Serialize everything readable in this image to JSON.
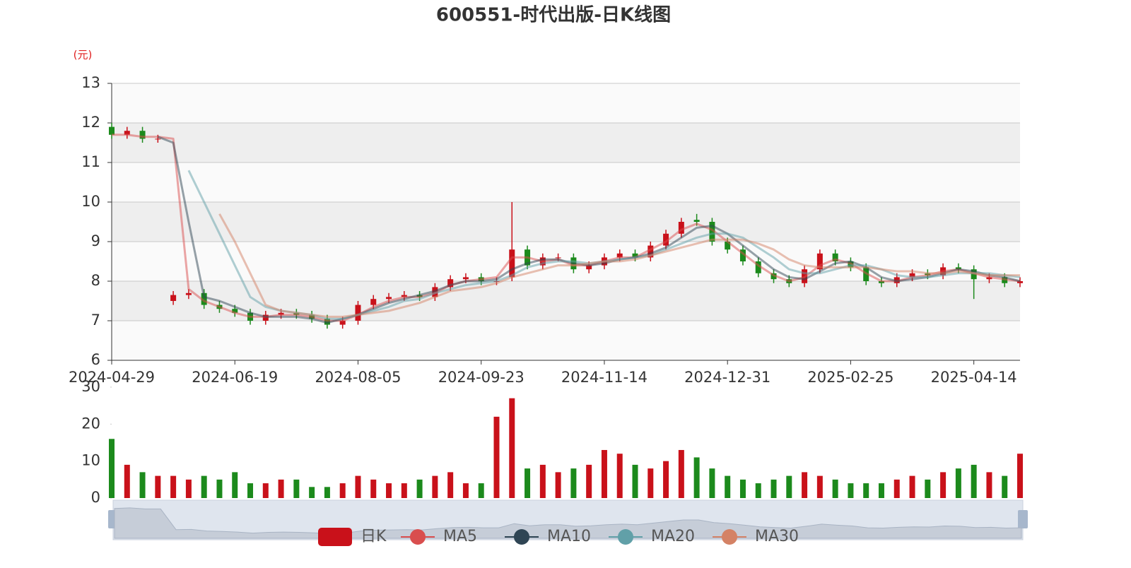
{
  "chart_data": {
    "type": "candlestick",
    "title": "600551-时代出版-日K线图",
    "y_unit": "(元)",
    "candle_name": "日K",
    "up_color": "#c9111a",
    "down_color": "#1c8a1c",
    "grid": true,
    "ylim": [
      6,
      13
    ],
    "yticks": [
      6,
      7,
      8,
      9,
      10,
      11,
      12,
      13
    ],
    "categories": [
      "2024-04-29",
      null,
      null,
      null,
      null,
      null,
      null,
      null,
      "2024-06-19",
      null,
      null,
      null,
      null,
      null,
      null,
      null,
      "2024-08-05",
      null,
      null,
      null,
      null,
      null,
      null,
      null,
      "2024-09-23",
      null,
      null,
      null,
      null,
      null,
      null,
      null,
      "2024-11-14",
      null,
      null,
      null,
      null,
      null,
      null,
      null,
      "2024-12-31",
      null,
      null,
      null,
      null,
      null,
      null,
      null,
      "2025-02-25",
      null,
      null,
      null,
      null,
      null,
      null,
      null,
      "2025-04-14",
      null,
      null,
      null
    ],
    "open": [
      11.9,
      11.7,
      11.8,
      11.6,
      7.5,
      7.65,
      7.7,
      7.4,
      7.3,
      7.2,
      7.0,
      7.15,
      7.2,
      7.15,
      7.05,
      6.9,
      7.0,
      7.4,
      7.55,
      7.6,
      7.65,
      7.6,
      7.85,
      8.05,
      8.1,
      8.0,
      8.1,
      8.8,
      8.4,
      8.6,
      8.6,
      8.3,
      8.4,
      8.6,
      8.7,
      8.6,
      8.9,
      9.2,
      9.55,
      9.5,
      9.0,
      8.8,
      8.5,
      8.2,
      8.05,
      7.95,
      8.3,
      8.7,
      8.5,
      8.35,
      8.0,
      7.95,
      8.1,
      8.2,
      8.15,
      8.35,
      8.3,
      8.05,
      8.1,
      7.95
    ],
    "close": [
      11.7,
      11.8,
      11.6,
      11.6,
      7.65,
      7.7,
      7.4,
      7.3,
      7.2,
      7.0,
      7.15,
      7.2,
      7.15,
      7.05,
      6.9,
      7.0,
      7.4,
      7.55,
      7.6,
      7.65,
      7.6,
      7.85,
      8.05,
      8.1,
      8.0,
      8.0,
      8.8,
      8.4,
      8.6,
      8.6,
      8.3,
      8.4,
      8.6,
      8.7,
      8.6,
      8.9,
      9.2,
      9.5,
      9.5,
      9.0,
      8.8,
      8.5,
      8.2,
      8.05,
      7.95,
      8.3,
      8.7,
      8.5,
      8.35,
      8.0,
      7.95,
      8.1,
      8.2,
      8.15,
      8.35,
      8.3,
      8.05,
      8.1,
      7.95,
      8.0
    ],
    "low": [
      11.6,
      11.6,
      11.5,
      11.5,
      7.4,
      7.55,
      7.3,
      7.2,
      7.1,
      6.9,
      6.9,
      7.05,
      7.05,
      6.95,
      6.8,
      6.8,
      6.9,
      7.3,
      7.45,
      7.5,
      7.5,
      7.5,
      7.75,
      7.95,
      7.9,
      7.9,
      8.0,
      8.3,
      8.3,
      8.5,
      8.2,
      8.2,
      8.3,
      8.5,
      8.5,
      8.5,
      8.8,
      9.1,
      9.4,
      8.9,
      8.7,
      8.4,
      8.1,
      7.95,
      7.85,
      7.85,
      8.2,
      8.4,
      8.25,
      7.9,
      7.85,
      7.85,
      8.0,
      8.05,
      8.05,
      8.2,
      7.55,
      7.95,
      7.85,
      7.85
    ],
    "high": [
      12.0,
      11.9,
      11.9,
      11.7,
      7.75,
      7.8,
      7.8,
      7.5,
      7.4,
      7.3,
      7.25,
      7.3,
      7.3,
      7.25,
      7.15,
      7.1,
      7.5,
      7.65,
      7.7,
      7.75,
      7.75,
      7.95,
      8.15,
      8.2,
      8.2,
      8.1,
      10.0,
      8.9,
      8.7,
      8.7,
      8.7,
      8.5,
      8.7,
      8.8,
      8.8,
      9.0,
      9.3,
      9.6,
      9.7,
      9.6,
      9.1,
      8.9,
      8.6,
      8.3,
      8.15,
      8.4,
      8.8,
      8.8,
      8.6,
      8.45,
      8.1,
      8.2,
      8.3,
      8.3,
      8.45,
      8.45,
      8.4,
      8.2,
      8.2,
      8.1
    ],
    "series": [
      {
        "name": "MA5",
        "color": "#d94e4e",
        "values": [
          11.7,
          11.7,
          11.65,
          11.65,
          11.6,
          7.8,
          7.5,
          7.35,
          7.2,
          7.1,
          7.1,
          7.15,
          7.15,
          7.1,
          7.0,
          7.0,
          7.15,
          7.35,
          7.5,
          7.6,
          7.6,
          7.7,
          7.9,
          8.0,
          8.05,
          8.1,
          8.6,
          8.6,
          8.5,
          8.55,
          8.4,
          8.4,
          8.5,
          8.6,
          8.6,
          8.8,
          9.0,
          9.3,
          9.45,
          9.3,
          9.0,
          8.7,
          8.4,
          8.15,
          8.0,
          8.1,
          8.4,
          8.55,
          8.45,
          8.2,
          8.0,
          8.0,
          8.1,
          8.15,
          8.25,
          8.3,
          8.2,
          8.1,
          8.05,
          8.0
        ]
      },
      {
        "name": "MA10",
        "color": "#2f4554",
        "values": [
          null,
          null,
          null,
          11.65,
          11.5,
          9.5,
          7.6,
          7.5,
          7.35,
          7.2,
          7.1,
          7.1,
          7.1,
          7.05,
          6.95,
          7.05,
          7.15,
          7.3,
          7.45,
          7.55,
          7.65,
          7.75,
          7.9,
          8.0,
          8.0,
          8.05,
          8.3,
          8.45,
          8.55,
          8.55,
          8.45,
          8.4,
          8.45,
          8.55,
          8.6,
          8.7,
          8.85,
          9.1,
          9.35,
          9.4,
          9.2,
          8.9,
          8.6,
          8.3,
          8.1,
          8.05,
          8.25,
          8.45,
          8.5,
          8.35,
          8.1,
          8.0,
          8.05,
          8.1,
          8.2,
          8.3,
          8.25,
          8.15,
          8.1,
          8.0
        ]
      },
      {
        "name": "MA20",
        "color": "#61a0a8",
        "values": [
          null,
          null,
          null,
          null,
          null,
          10.8,
          10.0,
          9.2,
          8.4,
          7.6,
          7.35,
          7.25,
          7.2,
          7.15,
          7.05,
          7.05,
          7.15,
          7.25,
          7.35,
          7.5,
          7.55,
          7.7,
          7.8,
          7.9,
          7.95,
          8.0,
          8.15,
          8.35,
          8.45,
          8.5,
          8.5,
          8.45,
          8.5,
          8.55,
          8.6,
          8.65,
          8.8,
          8.95,
          9.1,
          9.2,
          9.2,
          9.1,
          8.85,
          8.6,
          8.3,
          8.2,
          8.2,
          8.3,
          8.4,
          8.4,
          8.3,
          8.15,
          8.1,
          8.1,
          8.15,
          8.2,
          8.2,
          8.2,
          8.15,
          8.1
        ]
      },
      {
        "name": "MA30",
        "color": "#d48265",
        "values": [
          null,
          null,
          null,
          null,
          null,
          null,
          null,
          9.7,
          9.0,
          8.2,
          7.4,
          7.25,
          7.2,
          7.15,
          7.1,
          7.1,
          7.15,
          7.2,
          7.25,
          7.35,
          7.45,
          7.6,
          7.75,
          7.8,
          7.85,
          7.95,
          8.1,
          8.2,
          8.3,
          8.4,
          8.4,
          8.45,
          8.5,
          8.5,
          8.55,
          8.65,
          8.75,
          8.85,
          8.95,
          9.05,
          9.05,
          9.05,
          8.95,
          8.8,
          8.55,
          8.4,
          8.35,
          8.35,
          8.35,
          8.35,
          8.3,
          8.25,
          8.25,
          8.2,
          8.2,
          8.25,
          8.2,
          8.15,
          8.15,
          8.15
        ]
      }
    ],
    "volume": {
      "ylim": [
        0,
        30
      ],
      "yticks": [
        0,
        10,
        20,
        30
      ],
      "values": [
        16,
        9,
        7,
        6,
        6,
        5,
        6,
        5,
        7,
        4,
        4,
        5,
        5,
        3,
        3,
        4,
        6,
        5,
        4,
        4,
        5,
        6,
        7,
        4,
        4,
        22,
        27,
        8,
        9,
        7,
        8,
        9,
        13,
        12,
        9,
        8,
        10,
        13,
        11,
        8,
        6,
        5,
        4,
        5,
        6,
        7,
        6,
        5,
        4,
        4,
        4,
        5,
        6,
        5,
        7,
        8,
        9,
        7,
        6,
        12
      ]
    }
  }
}
